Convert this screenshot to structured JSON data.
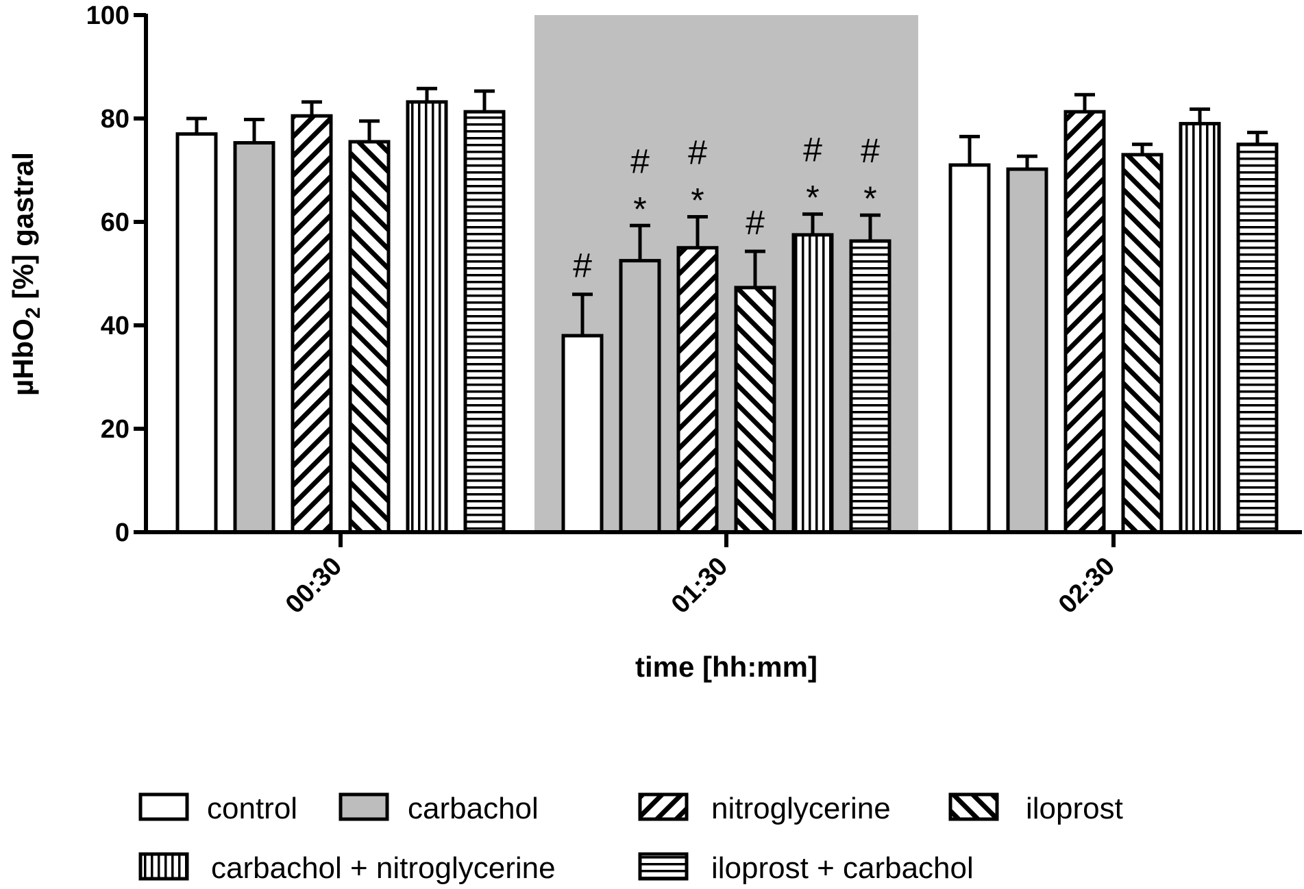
{
  "chart_data": {
    "type": "bar",
    "title": "",
    "xlabel": "time [hh:mm]",
    "ylabel": {
      "prefix": "µHbO",
      "subscript": "2",
      "suffix": " [%] gastral"
    },
    "ylim": [
      0,
      100
    ],
    "yticks": [
      "0",
      "20",
      "40",
      "60",
      "80",
      "100"
    ],
    "ytick_values": [
      0,
      20,
      40,
      60,
      80,
      100
    ],
    "categories": [
      "00:30",
      "01:30",
      "02:30"
    ],
    "highlighted_category": "01:30",
    "series": [
      {
        "name": "control",
        "pattern": "empty",
        "values": [
          77,
          38,
          71
        ],
        "errors": [
          3,
          8,
          5.5
        ],
        "annotations": [
          [],
          [
            "#"
          ],
          []
        ]
      },
      {
        "name": "carbachol",
        "pattern": "gray",
        "values": [
          75.3,
          52.5,
          70.2
        ],
        "errors": [
          4.5,
          6.8,
          2.5
        ],
        "annotations": [
          [],
          [
            "*",
            "#"
          ],
          []
        ]
      },
      {
        "name": "nitroglycerine",
        "pattern": "diag-up",
        "values": [
          80.5,
          55,
          81.3
        ],
        "errors": [
          2.7,
          6,
          3.3
        ],
        "annotations": [
          [],
          [
            "*",
            "#"
          ],
          []
        ]
      },
      {
        "name": "iloprost",
        "pattern": "diag-down",
        "values": [
          75.5,
          47.3,
          73
        ],
        "errors": [
          4,
          7,
          2
        ],
        "annotations": [
          [],
          [
            "#"
          ],
          []
        ]
      },
      {
        "name": "carbachol + nitroglycerine",
        "pattern": "vertical",
        "values": [
          83.2,
          57.5,
          79
        ],
        "errors": [
          2.6,
          4,
          2.8
        ],
        "annotations": [
          [],
          [
            "*",
            "#"
          ],
          []
        ]
      },
      {
        "name": "iloprost + carbachol",
        "pattern": "horizontal",
        "values": [
          81.3,
          56.3,
          75
        ],
        "errors": [
          4,
          5,
          2.3
        ],
        "annotations": [
          [],
          [
            "*",
            "#"
          ],
          []
        ]
      }
    ],
    "legend_position": "bottom"
  },
  "colors": {
    "gray_fill": "#bdbdbd",
    "highlight": "#bfbfbf",
    "stroke": "#000000",
    "white": "#ffffff"
  }
}
